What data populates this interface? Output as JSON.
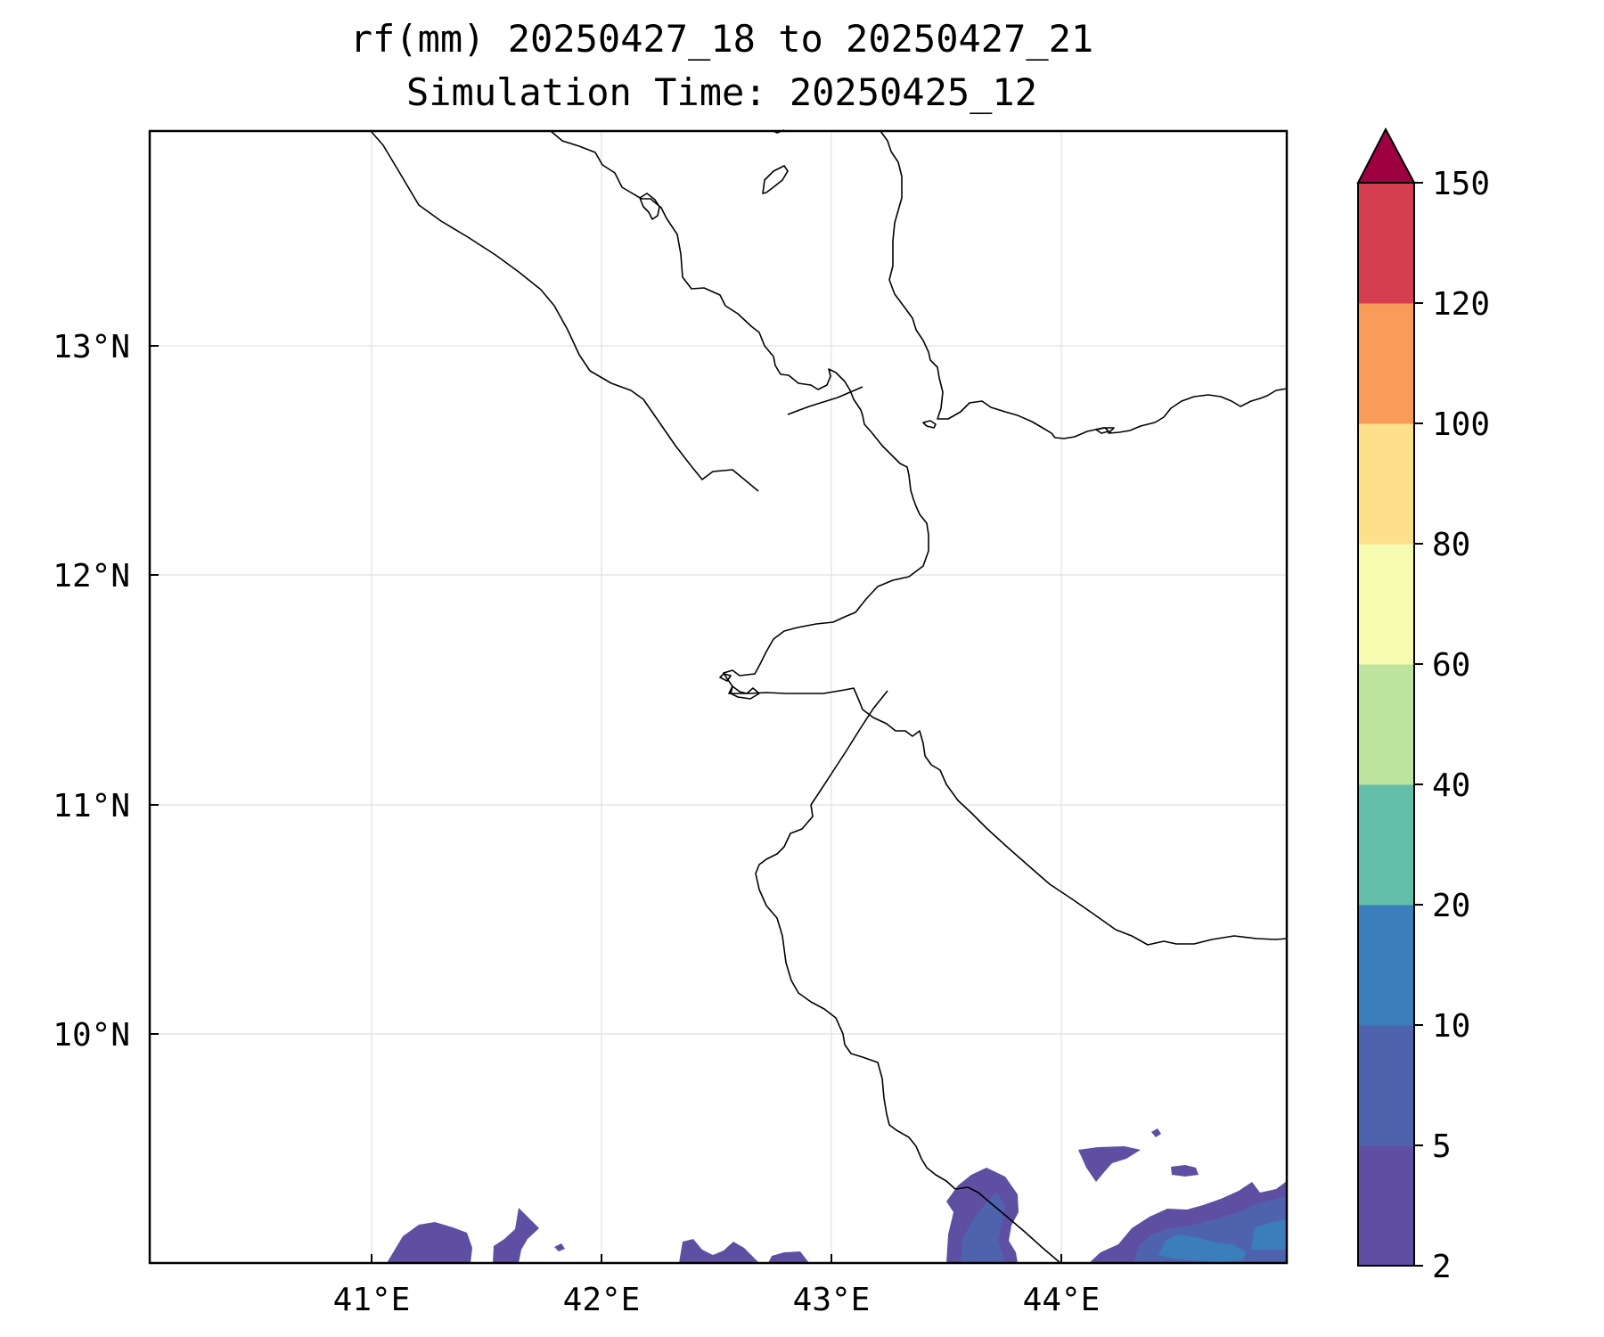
{
  "title": {
    "line1": "rf(mm) 20250427_18 to 20250427_21",
    "line2": "Simulation Time: 20250425_12"
  },
  "map": {
    "lon_range": [
      40.0,
      45.0
    ],
    "lat_range": [
      9.0,
      13.95
    ],
    "lon_ticks": [
      {
        "value": 41,
        "label": "41°E"
      },
      {
        "value": 42,
        "label": "42°E"
      },
      {
        "value": 43,
        "label": "43°E"
      },
      {
        "value": 44,
        "label": "44°E"
      }
    ],
    "lat_ticks": [
      {
        "value": 13,
        "label": "13°N"
      },
      {
        "value": 12,
        "label": "12°N"
      },
      {
        "value": 11,
        "label": "11°N"
      },
      {
        "value": 10,
        "label": "10°N"
      }
    ],
    "gridlines": true
  },
  "colorbar": {
    "levels": [
      {
        "label": "2",
        "color": "#5e4fa2"
      },
      {
        "label": "5",
        "color": "#4f62ae"
      },
      {
        "label": "10",
        "color": "#3a7fbc"
      },
      {
        "label": "20",
        "color": "#62bda9"
      },
      {
        "label": "40",
        "color": "#bde49f"
      },
      {
        "label": "60",
        "color": "#f5fbaf"
      },
      {
        "label": "80",
        "color": "#fee08b"
      },
      {
        "label": "100",
        "color": "#f99c5a"
      },
      {
        "label": "120",
        "color": "#d53e4f"
      }
    ],
    "top_label": "150",
    "extend_color": "#9e0142"
  }
}
